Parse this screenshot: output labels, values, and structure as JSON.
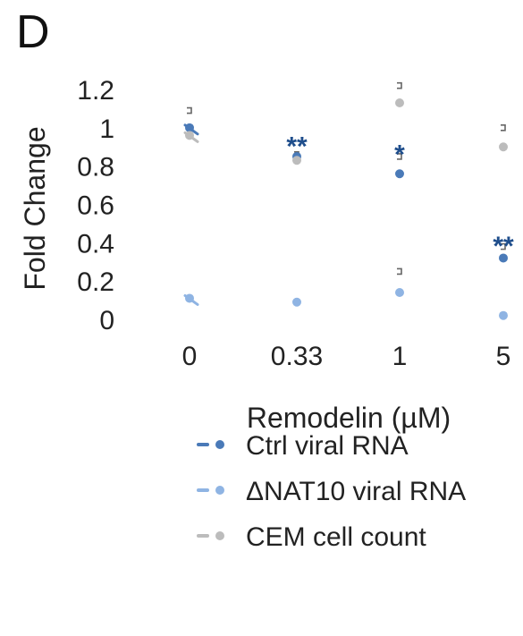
{
  "panel_label": "D",
  "chart_data": {
    "type": "scatter",
    "categories": [
      "0",
      "0.33",
      "1",
      "5"
    ],
    "xlabel": "Remodelin (µM)",
    "ylabel": "Fold Change",
    "yticks": [
      "0",
      "0.2",
      "0.4",
      "0.6",
      "0.8",
      "1",
      "1.2"
    ],
    "ylim": [
      0,
      1.2
    ],
    "grid": false,
    "legend_position": "bottom",
    "series": [
      {
        "name": "Ctrl viral RNA",
        "color": "#4a7ab8",
        "values": [
          1.0,
          0.85,
          0.76,
          0.32
        ]
      },
      {
        "name": "ΔNAT10 viral RNA",
        "color": "#8fb4e3",
        "values": [
          0.11,
          0.09,
          0.14,
          0.02
        ]
      },
      {
        "name": "CEM cell count",
        "color": "#bcbcbc",
        "values": [
          0.96,
          0.83,
          1.13,
          0.9
        ]
      }
    ],
    "annotations": [
      {
        "category": "0.33",
        "text": "**",
        "y": 0.94
      },
      {
        "category": "1",
        "text": "*",
        "y": 0.9
      },
      {
        "category": "5",
        "text": "**",
        "y": 0.42
      }
    ],
    "annotation_color": "#1f4e8c"
  }
}
